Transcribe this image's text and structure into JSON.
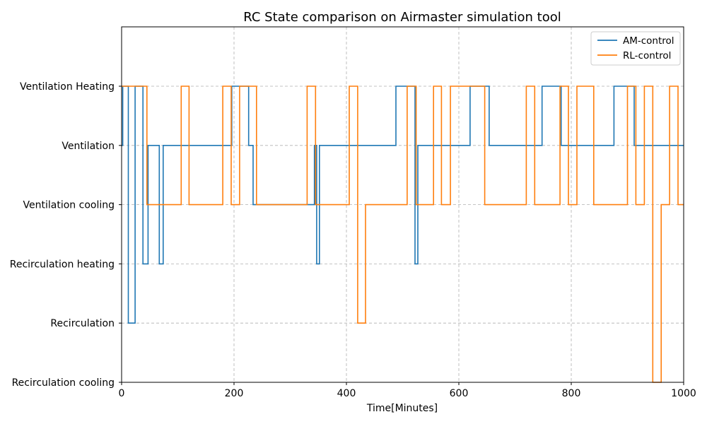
{
  "chart_data": {
    "type": "line",
    "title": "RC State comparison on Airmaster simulation tool",
    "xlabel": "Time[Minutes]",
    "ylabel": "",
    "xlim": [
      0,
      1000
    ],
    "ylim": [
      0,
      5
    ],
    "x_ticks": [
      0,
      200,
      400,
      600,
      800,
      1000
    ],
    "x_tick_labels": [
      "0",
      "200",
      "400",
      "600",
      "800",
      "1000"
    ],
    "y_categories": [
      "Recirculation cooling",
      "Recirculation",
      "Recirculation heating",
      "Ventilation cooling",
      "Ventilation",
      "Ventilation Heating"
    ],
    "grid": true,
    "legend_position": "top-right",
    "line_style": "step",
    "series": [
      {
        "name": "AM-control",
        "color": "#1f77b4",
        "x": [
          0,
          2,
          12,
          24,
          38,
          47,
          67,
          74,
          196,
          208,
          226,
          234,
          343,
          347,
          352,
          488,
          522,
          527,
          620,
          654,
          748,
          782,
          876,
          912,
          1000
        ],
        "y": [
          4,
          5,
          1,
          5,
          2,
          4,
          2,
          4,
          5,
          5,
          4,
          3,
          4,
          2,
          4,
          5,
          2,
          4,
          5,
          4,
          5,
          4,
          5,
          4,
          4
        ]
      },
      {
        "name": "RL-control",
        "color": "#ff7f0e",
        "x": [
          0,
          45,
          106,
          120,
          180,
          195,
          210,
          240,
          330,
          345,
          405,
          420,
          434,
          508,
          524,
          555,
          569,
          585,
          646,
          720,
          735,
          780,
          795,
          810,
          840,
          900,
          915,
          930,
          945,
          960,
          975,
          990,
          1000
        ],
        "y": [
          5,
          3,
          5,
          3,
          5,
          3,
          5,
          3,
          5,
          3,
          5,
          1,
          3,
          5,
          3,
          5,
          3,
          5,
          3,
          5,
          3,
          5,
          3,
          5,
          3,
          5,
          3,
          5,
          0,
          3,
          5,
          3,
          3
        ]
      }
    ]
  }
}
